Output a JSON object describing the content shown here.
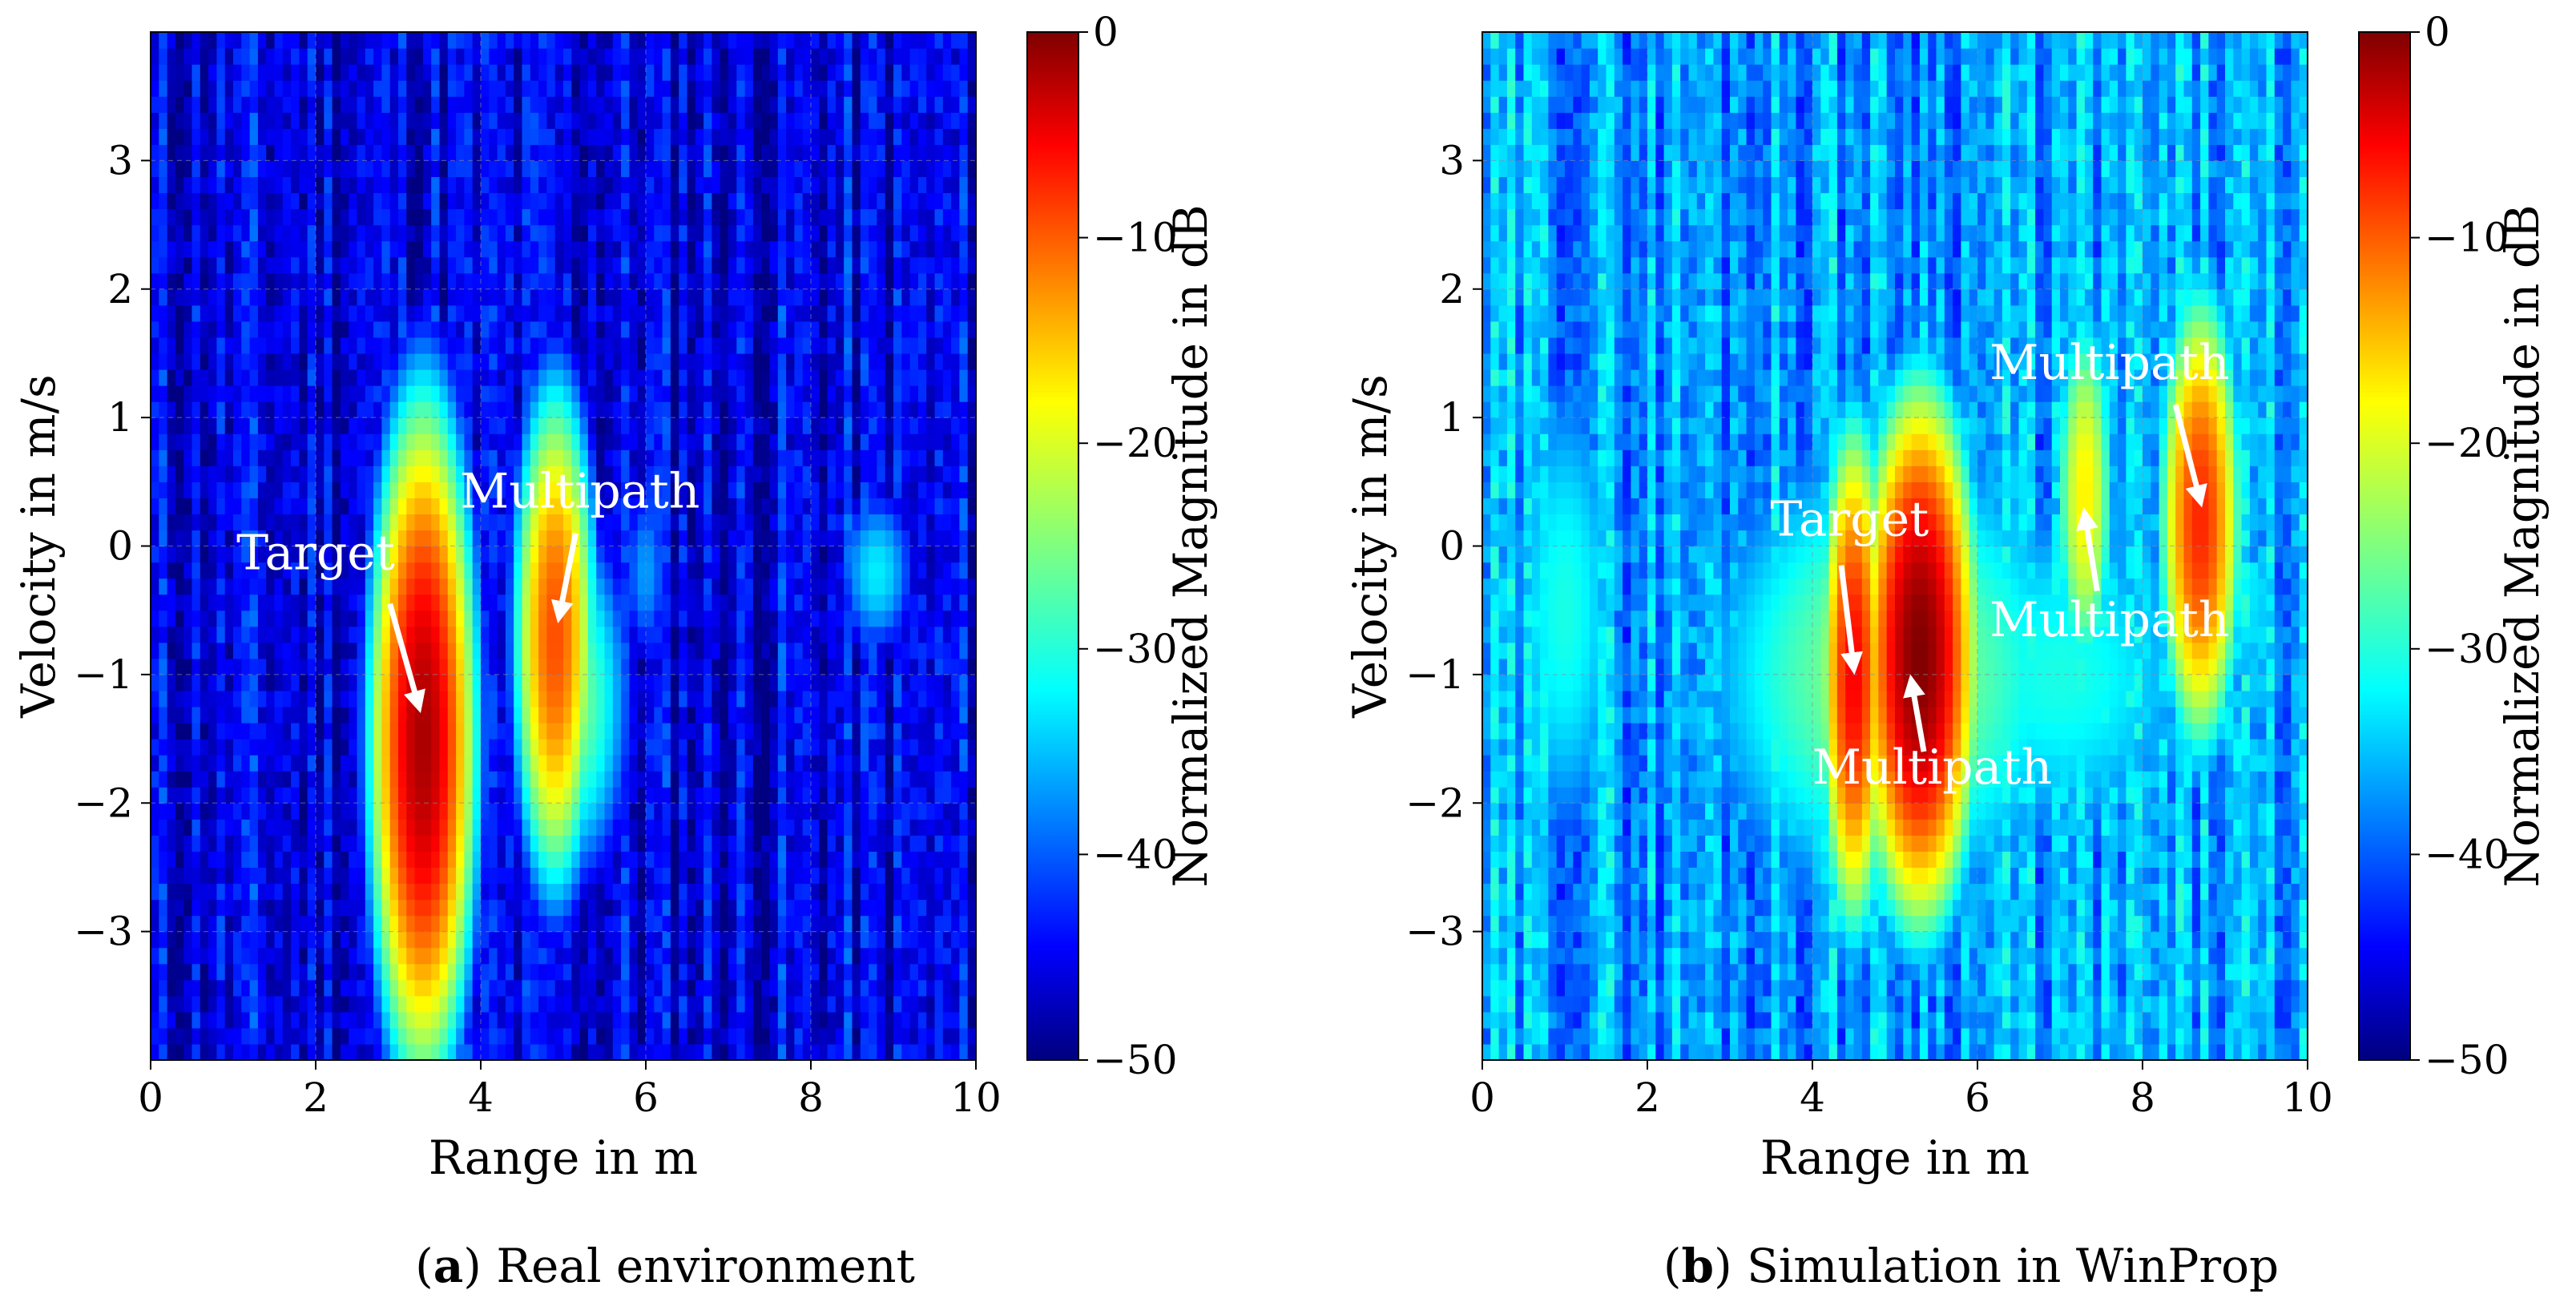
{
  "chart_data": [
    {
      "type": "heatmap",
      "panel_letter": "a",
      "caption": "Real environment",
      "xlabel": "Range in m",
      "ylabel": "Velocity in m/s",
      "xlim": [
        0,
        10
      ],
      "ylim": [
        -4,
        4
      ],
      "xticks": [
        0,
        2,
        4,
        6,
        8,
        10
      ],
      "yticks": [
        -3,
        -2,
        -1,
        0,
        1,
        2,
        3
      ],
      "grid": true,
      "colormap": "jet",
      "background_level_db": -45,
      "colorbar": {
        "label": "Normalized Magnitude in dB",
        "min": -50,
        "max": 0,
        "ticks": [
          0,
          -10,
          -20,
          -30,
          -40,
          -50
        ]
      },
      "peaks": [
        {
          "range": 3.3,
          "velocity": -1.5,
          "db": -2,
          "sigma_range": 0.18,
          "sigma_velocity": 0.75
        },
        {
          "range": 3.3,
          "velocity": -2.5,
          "db": -22,
          "sigma_range": 0.15,
          "sigma_velocity": 0.4
        },
        {
          "range": 4.9,
          "velocity": -0.7,
          "db": -10,
          "sigma_range": 0.15,
          "sigma_velocity": 0.6
        },
        {
          "range": 5.1,
          "velocity": -1.2,
          "db": -25,
          "sigma_range": 0.25,
          "sigma_velocity": 0.5
        },
        {
          "range": 4.9,
          "velocity": 0.6,
          "db": -28,
          "sigma_range": 0.15,
          "sigma_velocity": 0.3
        },
        {
          "range": 8.8,
          "velocity": -0.2,
          "db": -32,
          "sigma_range": 0.18,
          "sigma_velocity": 0.25
        },
        {
          "range": 6.0,
          "velocity": -0.2,
          "db": -36,
          "sigma_range": 0.12,
          "sigma_velocity": 0.3
        }
      ],
      "annotations": [
        {
          "text": "Target",
          "text_range": 2.0,
          "text_velocity": -0.18,
          "arrow_from": [
            2.9,
            -0.45
          ],
          "arrow_to": [
            3.25,
            -1.25
          ]
        },
        {
          "text": "Multipath",
          "text_range": 5.2,
          "text_velocity": 0.3,
          "arrow_from": [
            5.15,
            0.1
          ],
          "arrow_to": [
            4.95,
            -0.55
          ]
        }
      ]
    },
    {
      "type": "heatmap",
      "panel_letter": "b",
      "caption": "Simulation in WinProp",
      "xlabel": "Range in m",
      "ylabel": "Velocity in m/s",
      "xlim": [
        0,
        10
      ],
      "ylim": [
        -4,
        4
      ],
      "xticks": [
        0,
        2,
        4,
        6,
        8,
        10
      ],
      "yticks": [
        -3,
        -2,
        -1,
        0,
        1,
        2,
        3
      ],
      "grid": true,
      "colormap": "jet",
      "background_level_db": -36,
      "colorbar": {
        "label": "Normalized Magnitude in dB",
        "min": -50,
        "max": 0,
        "ticks": [
          0,
          -10,
          -20,
          -30,
          -40,
          -50
        ]
      },
      "peaks": [
        {
          "range": 4.5,
          "velocity": -1.0,
          "db": -6,
          "sigma_range": 0.12,
          "sigma_velocity": 0.6
        },
        {
          "range": 5.3,
          "velocity": -0.85,
          "db": 0,
          "sigma_range": 0.2,
          "sigma_velocity": 0.6
        },
        {
          "range": 5.0,
          "velocity": -1.0,
          "db": -24,
          "sigma_range": 0.9,
          "sigma_velocity": 0.7
        },
        {
          "range": 7.3,
          "velocity": 0.4,
          "db": -18,
          "sigma_range": 0.12,
          "sigma_velocity": 0.5
        },
        {
          "range": 8.7,
          "velocity": 0.2,
          "db": -8,
          "sigma_range": 0.15,
          "sigma_velocity": 0.55
        },
        {
          "range": 1.0,
          "velocity": -0.5,
          "db": -30,
          "sigma_range": 0.3,
          "sigma_velocity": 0.8
        },
        {
          "range": 7.0,
          "velocity": -1.0,
          "db": -30,
          "sigma_range": 0.8,
          "sigma_velocity": 0.6
        }
      ],
      "annotations": [
        {
          "text": "Target",
          "text_range": 4.45,
          "text_velocity": 0.08,
          "arrow_from": [
            4.35,
            -0.15
          ],
          "arrow_to": [
            4.5,
            -0.95
          ]
        },
        {
          "text": "Multipath",
          "text_range": 5.45,
          "text_velocity": -1.85,
          "arrow_from": [
            5.35,
            -1.6
          ],
          "arrow_to": [
            5.2,
            -1.05
          ]
        },
        {
          "text": "Multipath",
          "text_range": 7.6,
          "text_velocity": 1.3,
          "arrow_from": [
            8.4,
            1.1
          ],
          "arrow_to": [
            8.7,
            0.35
          ]
        },
        {
          "text": "Multipath",
          "text_range": 7.6,
          "text_velocity": -0.7,
          "arrow_from": [
            7.45,
            -0.35
          ],
          "arrow_to": [
            7.3,
            0.25
          ]
        }
      ]
    }
  ]
}
